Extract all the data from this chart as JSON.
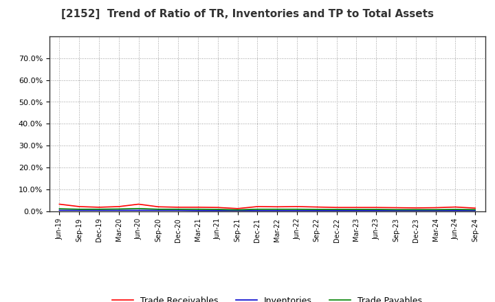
{
  "title": "[2152]  Trend of Ratio of TR, Inventories and TP to Total Assets",
  "x_labels": [
    "Jun-19",
    "Sep-19",
    "Dec-19",
    "Mar-20",
    "Jun-20",
    "Sep-20",
    "Dec-20",
    "Mar-21",
    "Jun-21",
    "Sep-21",
    "Dec-21",
    "Mar-22",
    "Jun-22",
    "Sep-22",
    "Dec-22",
    "Mar-23",
    "Jun-23",
    "Sep-23",
    "Dec-23",
    "Mar-24",
    "Jun-24",
    "Sep-24"
  ],
  "trade_receivables": [
    0.033,
    0.022,
    0.019,
    0.022,
    0.033,
    0.021,
    0.019,
    0.019,
    0.018,
    0.013,
    0.022,
    0.021,
    0.022,
    0.02,
    0.018,
    0.018,
    0.018,
    0.017,
    0.016,
    0.017,
    0.02,
    0.015
  ],
  "inventories": [
    0.005,
    0.005,
    0.005,
    0.005,
    0.005,
    0.005,
    0.005,
    0.004,
    0.004,
    0.004,
    0.004,
    0.004,
    0.004,
    0.004,
    0.004,
    0.004,
    0.004,
    0.004,
    0.004,
    0.004,
    0.004,
    0.004
  ],
  "trade_payables": [
    0.012,
    0.01,
    0.01,
    0.011,
    0.013,
    0.01,
    0.01,
    0.01,
    0.009,
    0.007,
    0.01,
    0.01,
    0.01,
    0.009,
    0.009,
    0.009,
    0.009,
    0.008,
    0.008,
    0.008,
    0.009,
    0.008
  ],
  "tr_color": "#ff0000",
  "inv_color": "#0000cc",
  "tp_color": "#008000",
  "ylim": [
    0.0,
    0.8
  ],
  "yticks": [
    0.0,
    0.1,
    0.2,
    0.3,
    0.4,
    0.5,
    0.6,
    0.7
  ],
  "ytick_labels": [
    "0.0%",
    "10.0%",
    "20.0%",
    "30.0%",
    "40.0%",
    "50.0%",
    "60.0%",
    "70.0%"
  ],
  "background_color": "#ffffff",
  "plot_bg_color": "#ffffff",
  "grid_color": "#999999",
  "title_color": "#333333",
  "legend_labels": [
    "Trade Receivables",
    "Inventories",
    "Trade Payables"
  ]
}
